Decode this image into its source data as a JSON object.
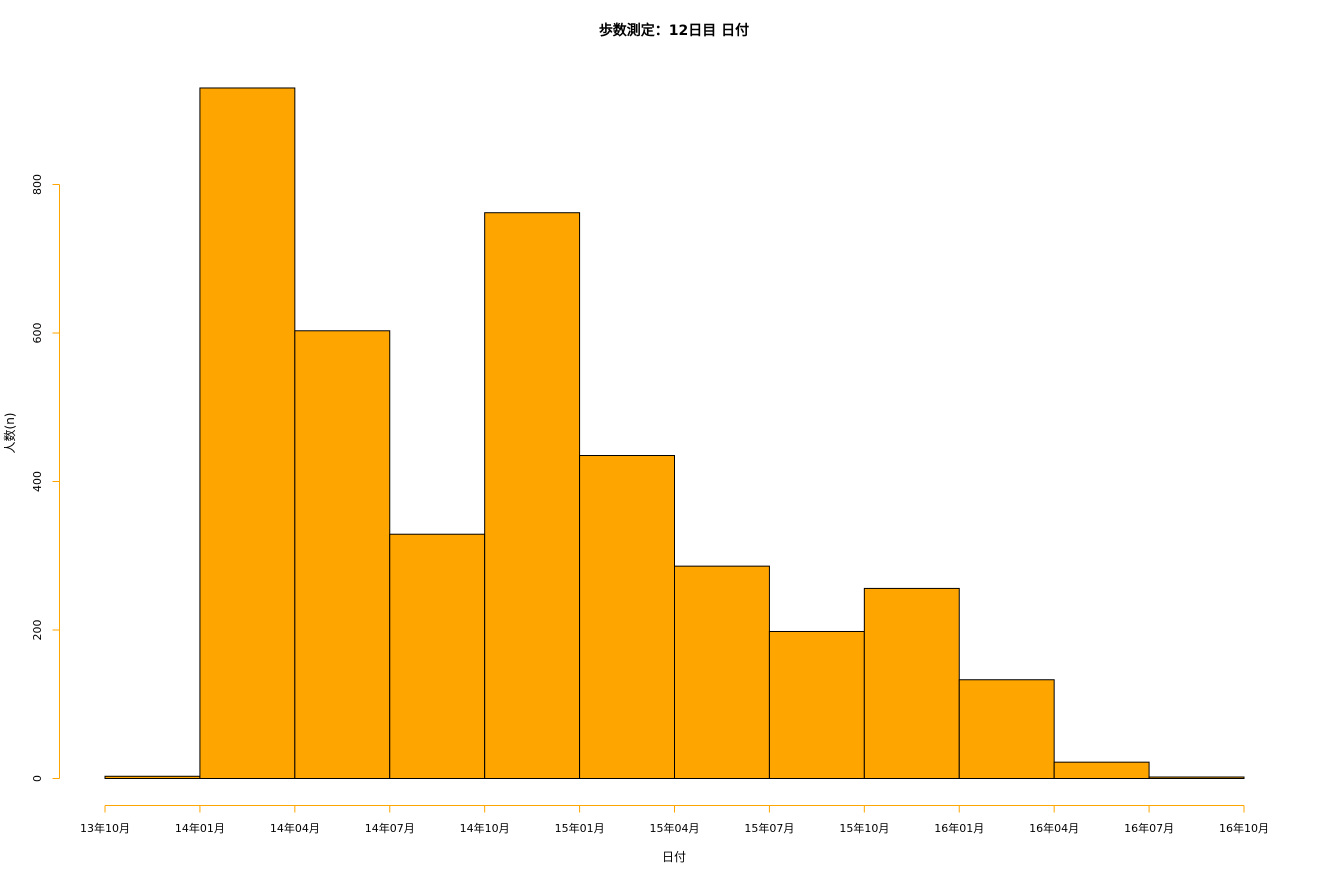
{
  "chart_data": {
    "type": "bar",
    "title": "歩数測定：12日目 日付",
    "xlabel": "日付",
    "ylabel": "人数(n)",
    "ylim": [
      0,
      930
    ],
    "x_ticks": [
      "13年10月",
      "14年01月",
      "14年04月",
      "14年07月",
      "14年10月",
      "15年01月",
      "15年04月",
      "15年07月",
      "15年10月",
      "16年01月",
      "16年04月",
      "16年07月",
      "16年10月"
    ],
    "y_ticks": [
      0,
      200,
      400,
      600,
      800
    ],
    "bins": [
      {
        "start": "13年10月",
        "end": "14年01月",
        "value": 3
      },
      {
        "start": "14年01月",
        "end": "14年04月",
        "value": 930
      },
      {
        "start": "14年04月",
        "end": "14年07月",
        "value": 603
      },
      {
        "start": "14年07月",
        "end": "14年10月",
        "value": 329
      },
      {
        "start": "14年10月",
        "end": "15年01月",
        "value": 762
      },
      {
        "start": "15年01月",
        "end": "15年04月",
        "value": 435
      },
      {
        "start": "15年04月",
        "end": "15年07月",
        "value": 286
      },
      {
        "start": "15年07月",
        "end": "15年10月",
        "value": 198
      },
      {
        "start": "15年10月",
        "end": "16年01月",
        "value": 256
      },
      {
        "start": "16年01月",
        "end": "16年04月",
        "value": 133
      },
      {
        "start": "16年04月",
        "end": "16年07月",
        "value": 22
      },
      {
        "start": "16年07月",
        "end": "16年10月",
        "value": 2
      }
    ],
    "colors": {
      "bar_fill": "#FFA500",
      "bar_stroke": "#000000",
      "axis": "#FFA500"
    },
    "grid": false,
    "legend": "none"
  }
}
